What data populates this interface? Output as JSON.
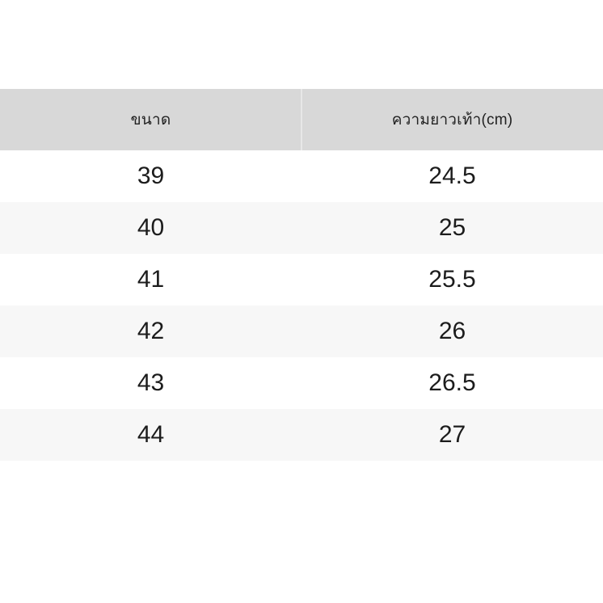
{
  "chart_data": {
    "type": "table",
    "columns": [
      "ขนาด",
      "ความยาวเท้า(cm)"
    ],
    "rows": [
      [
        "39",
        "24.5"
      ],
      [
        "40",
        "25"
      ],
      [
        "41",
        "25.5"
      ],
      [
        "42",
        "26"
      ],
      [
        "43",
        "26.5"
      ],
      [
        "44",
        "27"
      ]
    ]
  },
  "colors": {
    "header_bg": "#d8d8d8",
    "row_bg": "#ffffff",
    "row_alt_bg": "#f7f7f7",
    "header_divider": "#e7e7e7",
    "text": "#1c1c1c",
    "page_bg": "#ffffff"
  }
}
